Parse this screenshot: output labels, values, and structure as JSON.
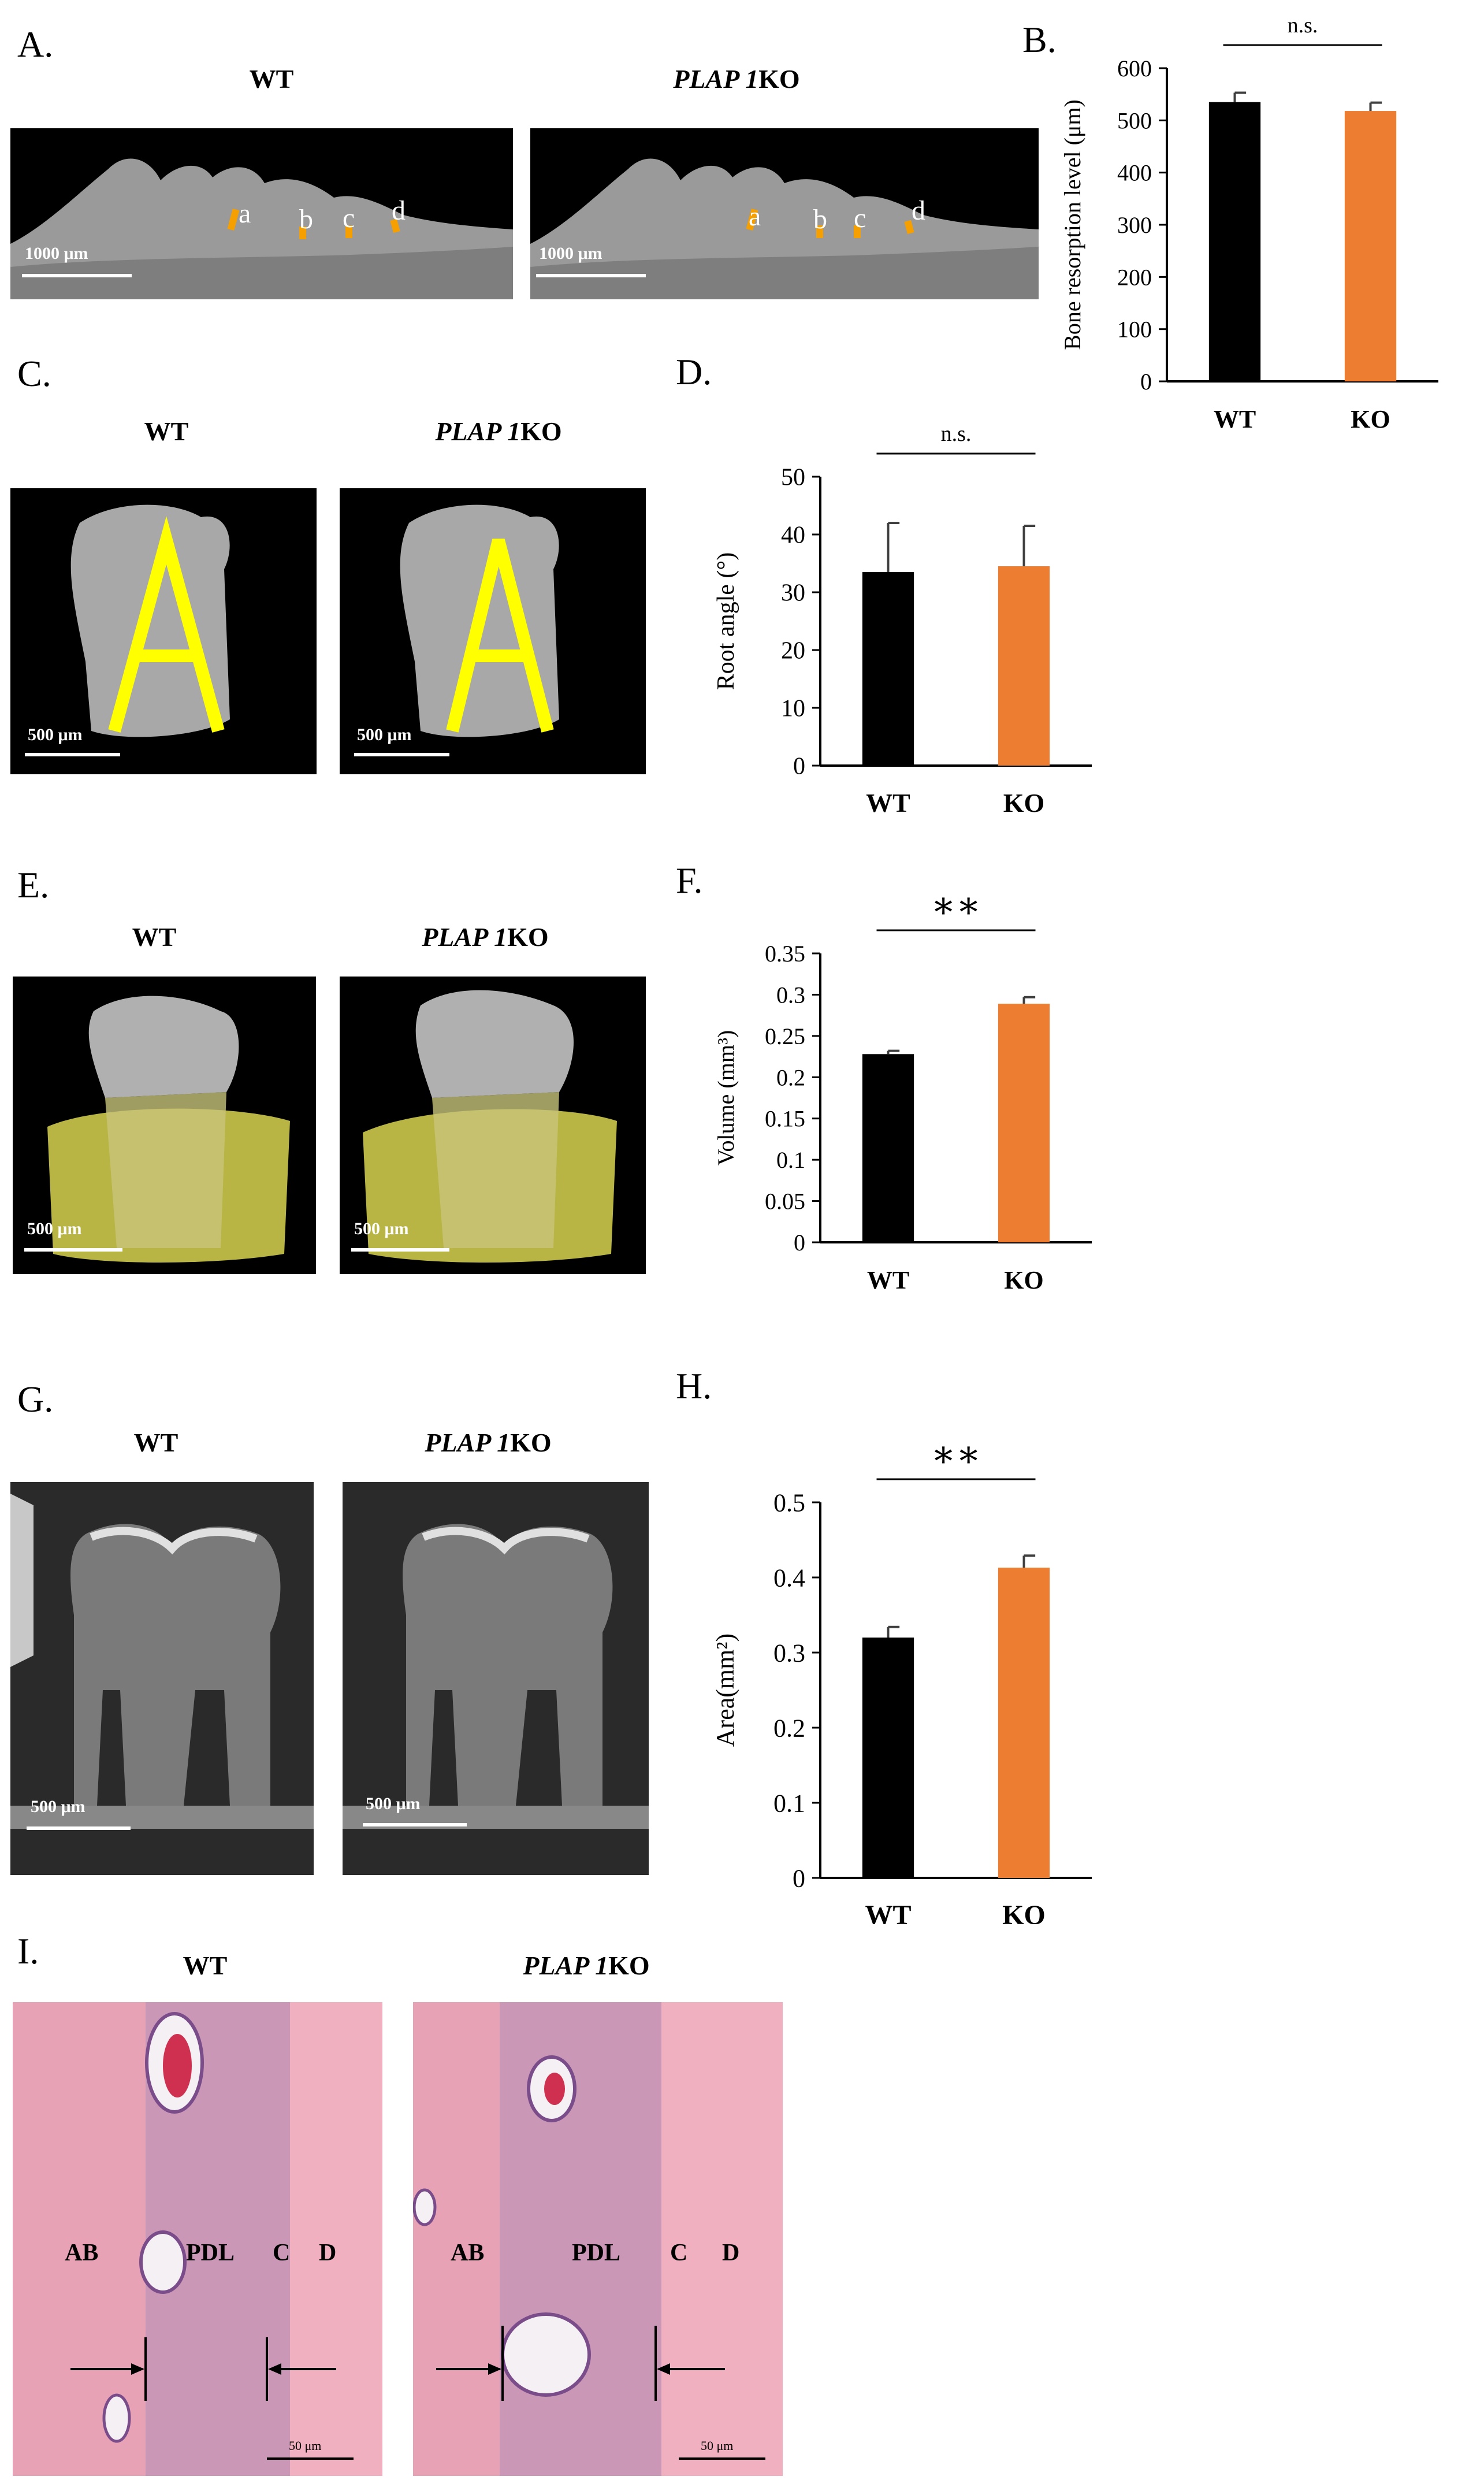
{
  "colors": {
    "wt": "#000000",
    "ko": "#ED7D31",
    "marker": "#F5A000",
    "highlight": "#FFFF00",
    "bone": "#bdbdbd",
    "tissue": "#e6a0b4"
  },
  "panels": {
    "A": {
      "label": "A.",
      "wt_title": "WT",
      "ko_title_italic": "PLAP 1",
      "ko_title_suffix": "KO",
      "scale": "1000 μm",
      "points": [
        "a",
        "b",
        "c",
        "d"
      ]
    },
    "C": {
      "label": "C.",
      "wt_title": "WT",
      "ko_title_italic": "PLAP 1",
      "ko_title_suffix": "KO",
      "scale": "500 μm"
    },
    "E": {
      "label": "E.",
      "wt_title": "WT",
      "ko_title_italic": "PLAP 1",
      "ko_title_suffix": "KO",
      "scale": "500 μm"
    },
    "G": {
      "label": "G.",
      "wt_title": "WT",
      "ko_title_italic": "PLAP 1",
      "ko_title_suffix": "KO",
      "scale": "500 μm"
    },
    "I": {
      "label": "I.",
      "wt_title": "WT",
      "ko_title_italic": "PLAP 1",
      "ko_title_suffix": "KO",
      "scale": "50 μm",
      "regions": [
        "AB",
        "PDL",
        "C",
        "D"
      ]
    }
  },
  "chart_data": [
    {
      "panel": "B.",
      "type": "bar",
      "categories": [
        "WT",
        "KO"
      ],
      "values": [
        535,
        518
      ],
      "errors": [
        18,
        16
      ],
      "ylabel": "Bone resorption level (μm)",
      "ylim": [
        0,
        600
      ],
      "ticks": [
        0,
        100,
        200,
        300,
        400,
        500,
        600
      ],
      "significance": "n.s."
    },
    {
      "panel": "D.",
      "type": "bar",
      "categories": [
        "WT",
        "KO"
      ],
      "values": [
        33.5,
        34.5
      ],
      "errors": [
        8.5,
        7
      ],
      "ylabel": "Root angle (°)",
      "ylim": [
        0,
        50
      ],
      "ticks": [
        0,
        10,
        20,
        30,
        40,
        50
      ],
      "significance": "n.s."
    },
    {
      "panel": "F.",
      "type": "bar",
      "categories": [
        "WT",
        "KO"
      ],
      "values": [
        0.228,
        0.289
      ],
      "errors": [
        0.004,
        0.008
      ],
      "ylabel": "Volume (mm³)",
      "ylim": [
        0,
        0.35
      ],
      "ticks": [
        0,
        0.05,
        0.1,
        0.15,
        0.2,
        0.25,
        0.3,
        0.35
      ],
      "significance": "**"
    },
    {
      "panel": "H.",
      "type": "bar",
      "categories": [
        "WT",
        "KO"
      ],
      "values": [
        0.32,
        0.413
      ],
      "errors": [
        0.014,
        0.016
      ],
      "ylabel": "Area(mm²)",
      "ylim": [
        0,
        0.5
      ],
      "ticks": [
        0,
        0.1,
        0.2,
        0.3,
        0.4,
        0.5
      ],
      "significance": "**"
    }
  ]
}
